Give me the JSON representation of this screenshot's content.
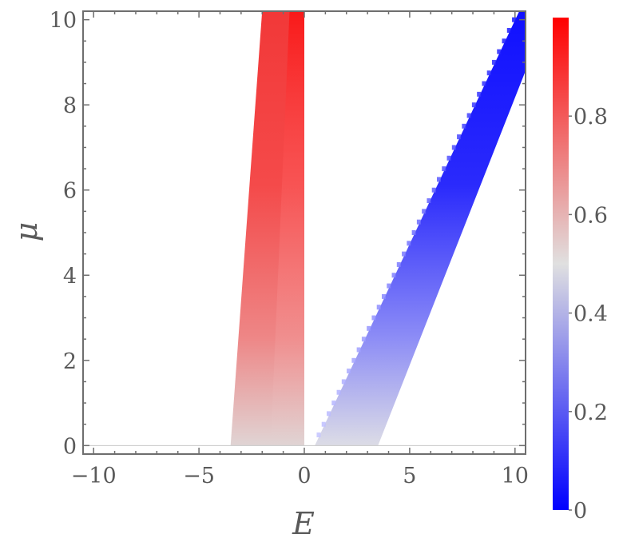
{
  "chart_data": {
    "type": "heatmap",
    "title": "",
    "xlabel": "E",
    "ylabel": "μ",
    "xlim": [
      -10.5,
      10.5
    ],
    "ylim": [
      -0.2,
      10.2
    ],
    "x_ticks": [
      -10,
      -5,
      0,
      5,
      10
    ],
    "x_tick_labels": [
      "−10",
      "−5",
      "0",
      "5",
      "10"
    ],
    "y_ticks": [
      0,
      2,
      4,
      6,
      8,
      10
    ],
    "y_tick_labels": [
      "0",
      "2",
      "4",
      "6",
      "8",
      "10"
    ],
    "colorbar": {
      "range": [
        0,
        1
      ],
      "ticks": [
        0,
        0.2,
        0.4,
        0.6,
        0.8
      ],
      "tick_labels": [
        "0",
        "0.2",
        "0.4",
        "0.6",
        "0.8"
      ],
      "colors": {
        "low": "#0000ff",
        "mid": "#e0e0e0",
        "high": "#ff0000"
      }
    },
    "regions": [
      {
        "name": "negative-energy band",
        "corners": [
          [
            -3.5,
            0
          ],
          [
            -2.0,
            10.2
          ],
          [
            0.0,
            10.2
          ],
          [
            0.0,
            0
          ]
        ],
        "value_at_base": 0.55,
        "value_at_top": 0.9
      },
      {
        "name": "positive-energy band",
        "corners": [
          [
            0.5,
            0
          ],
          [
            3.5,
            0
          ],
          [
            10.5,
            8.8
          ],
          [
            10.5,
            10.2
          ],
          [
            10.2,
            10.2
          ]
        ],
        "value_at_base": 0.45,
        "value_at_top": 0.05
      }
    ],
    "baseline": {
      "y": 0,
      "x_range": [
        -10.5,
        10.5
      ]
    }
  }
}
